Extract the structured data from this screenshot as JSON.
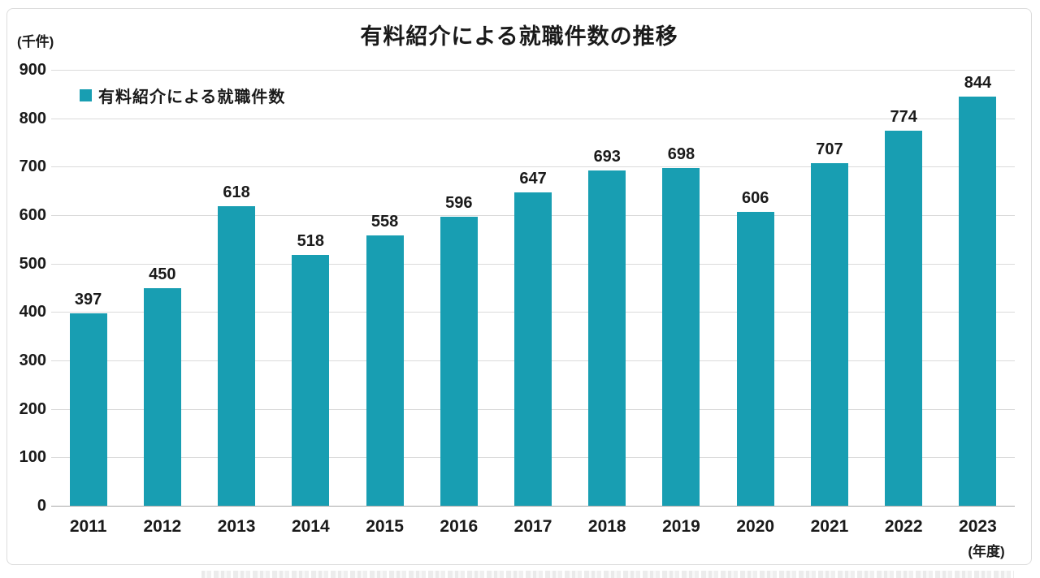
{
  "header": {
    "title": "有料紹介による就職件数の推移",
    "unit_label": "(千件)"
  },
  "legend": {
    "label": "有料紹介による就職件数",
    "swatch_color": "#189EB2"
  },
  "x_axis": {
    "unit_label": "(年度)"
  },
  "colors": {
    "bar": "#189EB2",
    "gridline": "#dadada",
    "baseline": "#a8a8a8",
    "text": "#1a1a1a",
    "frame_border": "#dcdcdc"
  },
  "chart_data": {
    "type": "bar",
    "title": "有料紹介による就職件数の推移",
    "categories": [
      "2011",
      "2012",
      "2013",
      "2014",
      "2015",
      "2016",
      "2017",
      "2018",
      "2019",
      "2020",
      "2021",
      "2022",
      "2023"
    ],
    "values": [
      397,
      450,
      618,
      518,
      558,
      596,
      647,
      693,
      698,
      606,
      707,
      774,
      844
    ],
    "series_name": "有料紹介による就職件数",
    "ylabel": "(千件)",
    "xlabel": "(年度)",
    "ylim": [
      0,
      900
    ],
    "ytick_step": 100,
    "y_tick_labels": [
      "0",
      "100",
      "200",
      "300",
      "400",
      "500",
      "600",
      "700",
      "800",
      "900"
    ],
    "grid": true,
    "legend_position": "top-left",
    "bar_color": "#189EB2",
    "value_labels_shown": true
  }
}
